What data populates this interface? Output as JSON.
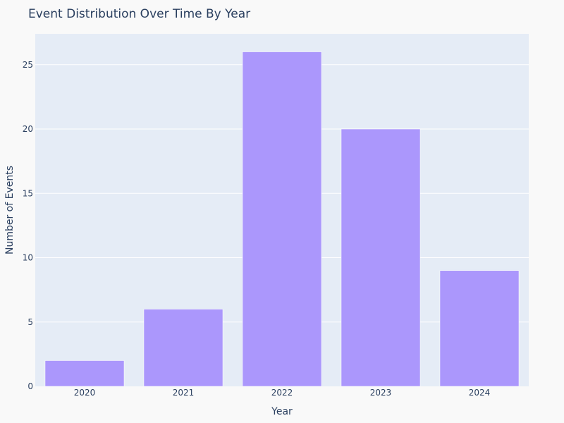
{
  "chart_data": {
    "type": "bar",
    "title": "Event Distribution Over Time By Year",
    "xlabel": "Year",
    "ylabel": "Number of Events",
    "categories": [
      "2020",
      "2021",
      "2022",
      "2023",
      "2024"
    ],
    "values": [
      2,
      6,
      26,
      20,
      9
    ],
    "ylim": [
      0,
      27.4
    ],
    "yticks": [
      0,
      5,
      10,
      15,
      20,
      25
    ],
    "grid": true,
    "legend": "none",
    "colors": {
      "bar": "#ab97fc",
      "plot_background": "#e5ecf6",
      "page_background": "#f9f9f9",
      "grid": "#ffffff",
      "text": "#2a3f5f"
    }
  }
}
